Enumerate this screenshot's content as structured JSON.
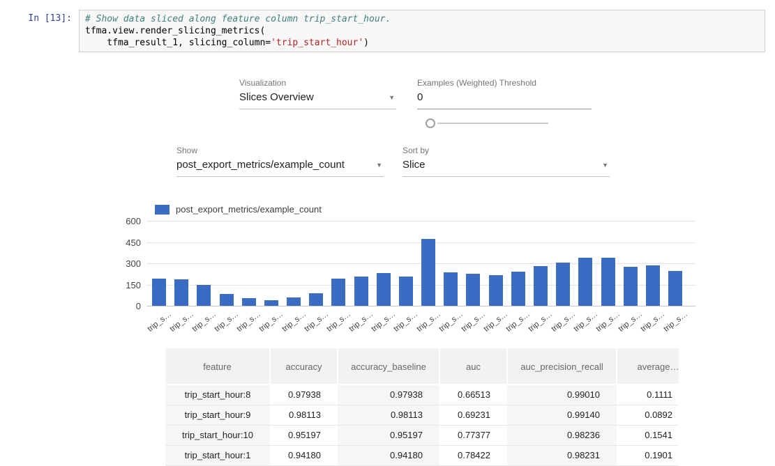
{
  "colors": {
    "accent": "#3b6cc4"
  },
  "notebook": {
    "prompt": "In [13]:",
    "code": {
      "comment": "# Show data sliced along feature column trip_start_hour.",
      "line2": "tfma.view.render_slicing_metrics(",
      "line3_pre": "    tfma_result_1, slicing_column=",
      "line3_string": "'trip_start_hour'",
      "line3_post": ")"
    }
  },
  "controls": {
    "visualization": {
      "label": "Visualization",
      "value": "Slices Overview"
    },
    "threshold": {
      "label": "Examples (Weighted) Threshold",
      "value": "0"
    },
    "show": {
      "label": "Show",
      "value": "post_export_metrics/example_count"
    },
    "sort": {
      "label": "Sort by",
      "value": "Slice"
    }
  },
  "chart": {
    "legend": "post_export_metrics/example_count"
  },
  "chart_data": {
    "type": "bar",
    "title": "",
    "legend": [
      "post_export_metrics/example_count"
    ],
    "legend_position": "top-left",
    "series_color": "#3b6cc4",
    "grid": true,
    "ylim": [
      0,
      600
    ],
    "yticks": [
      600,
      450,
      300,
      150,
      0
    ],
    "x_tick_label_display": "trip_s…",
    "categories": [
      "trip_s…",
      "trip_s…",
      "trip_s…",
      "trip_s…",
      "trip_s…",
      "trip_s…",
      "trip_s…",
      "trip_s…",
      "trip_s…",
      "trip_s…",
      "trip_s…",
      "trip_s…",
      "trip_s…",
      "trip_s…",
      "trip_s…",
      "trip_s…",
      "trip_s…",
      "trip_s…",
      "trip_s…",
      "trip_s…",
      "trip_s…",
      "trip_s…",
      "trip_s…",
      "trip_s…"
    ],
    "values": [
      192,
      187,
      150,
      85,
      55,
      40,
      60,
      90,
      192,
      207,
      230,
      207,
      470,
      236,
      226,
      216,
      241,
      280,
      305,
      339,
      339,
      275,
      285,
      246
    ]
  },
  "table": {
    "columns": [
      "feature",
      "accuracy",
      "accuracy_baseline",
      "auc",
      "auc_precision_recall",
      "average_loss"
    ],
    "rows": [
      [
        "trip_start_hour:8",
        "0.97938",
        "0.97938",
        "0.66513",
        "0.99010",
        "0.1111"
      ],
      [
        "trip_start_hour:9",
        "0.98113",
        "0.98113",
        "0.69231",
        "0.99140",
        "0.0892"
      ],
      [
        "trip_start_hour:10",
        "0.95197",
        "0.95197",
        "0.77377",
        "0.98236",
        "0.1541"
      ],
      [
        "trip_start_hour:1",
        "0.94180",
        "0.94180",
        "0.78422",
        "0.98231",
        "0.1901"
      ]
    ]
  }
}
